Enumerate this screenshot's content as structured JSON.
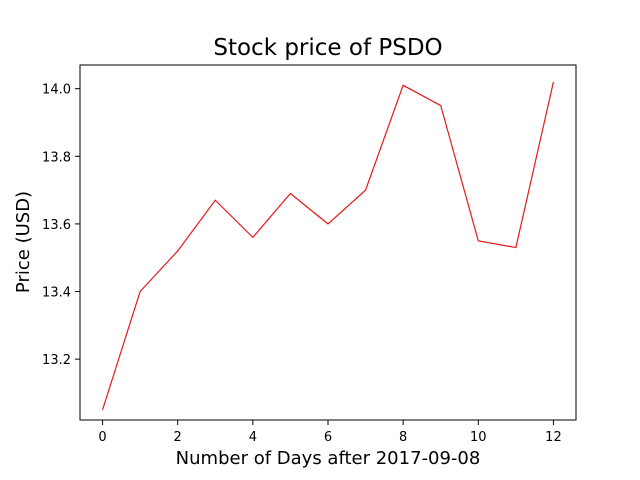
{
  "chart_data": {
    "type": "line",
    "title": "Stock price of PSDO",
    "xlabel": "Number of Days after 2017-09-08",
    "ylabel": "Price (USD)",
    "x": [
      0,
      1,
      2,
      3,
      4,
      5,
      6,
      7,
      8,
      9,
      10,
      11,
      12
    ],
    "series": [
      {
        "name": "",
        "color": "#e41a1c",
        "values": [
          13.05,
          13.4,
          13.52,
          13.67,
          13.56,
          13.69,
          13.6,
          13.7,
          14.01,
          13.95,
          13.55,
          13.53,
          14.02
        ]
      }
    ],
    "xlim": [
      -0.6,
      12.6
    ],
    "ylim": [
      13.02,
      14.07
    ],
    "xticks": [
      0,
      2,
      4,
      6,
      8,
      10,
      12
    ],
    "yticks": [
      13.2,
      13.4,
      13.6,
      13.8,
      14.0
    ],
    "xtick_labels": [
      "0",
      "2",
      "4",
      "6",
      "8",
      "10",
      "12"
    ],
    "ytick_labels": [
      "13.2",
      "13.4",
      "13.6",
      "13.8",
      "14.0"
    ],
    "grid": false,
    "legend": "none"
  }
}
